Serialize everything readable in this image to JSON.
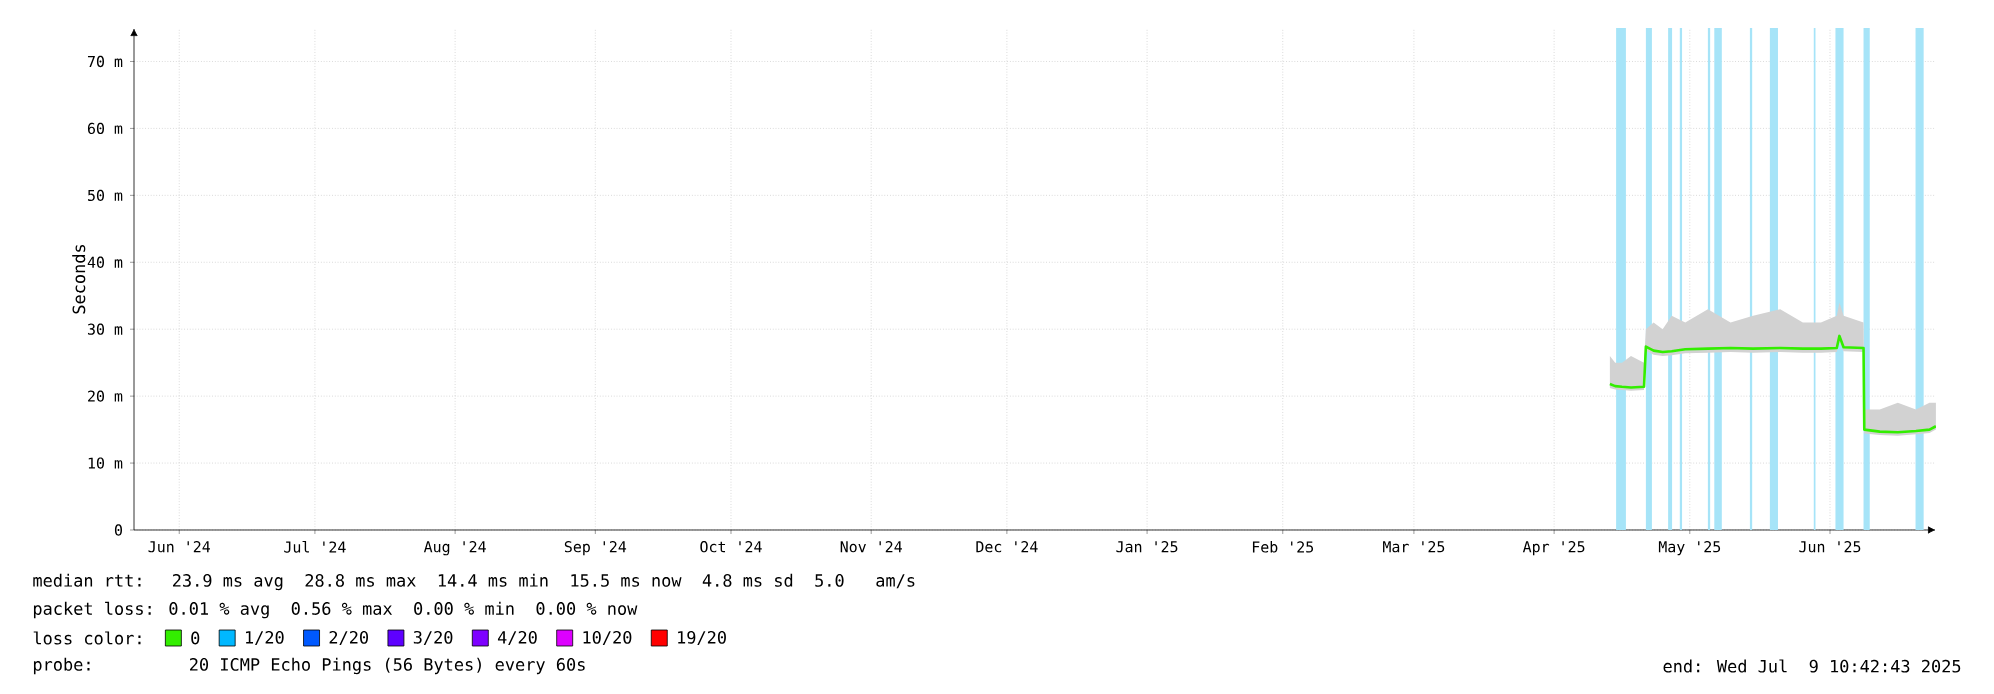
{
  "chart_data": {
    "type": "line",
    "ylabel": "Seconds",
    "legend_title": "loss color:",
    "legend": "bottom",
    "grid": true,
    "xlim": [
      "2024-06-06",
      "2025-07-09T10:42"
    ],
    "xticks": [
      {
        "value": "2024-06-16",
        "label": "Jun '24"
      },
      {
        "value": "2024-07-16",
        "label": "Jul '24"
      },
      {
        "value": "2024-08-16",
        "label": "Aug '24"
      },
      {
        "value": "2024-09-16",
        "label": "Sep '24"
      },
      {
        "value": "2024-10-16",
        "label": "Oct '24"
      },
      {
        "value": "2024-11-16",
        "label": "Nov '24"
      },
      {
        "value": "2024-12-16",
        "label": "Dec '24"
      },
      {
        "value": "2025-01-16",
        "label": "Jan '25"
      },
      {
        "value": "2025-02-15",
        "label": "Feb '25"
      },
      {
        "value": "2025-03-16",
        "label": "Mar '25"
      },
      {
        "value": "2025-04-16",
        "label": "Apr '25"
      },
      {
        "value": "2025-05-16",
        "label": "May '25"
      },
      {
        "value": "2025-06-16",
        "label": "Jun '25"
      }
    ],
    "ylim": [
      0,
      75
    ],
    "yticks": [
      0,
      {
        "value": 10,
        "label": "10 m"
      },
      {
        "value": 20,
        "label": "20 m"
      },
      {
        "value": 30,
        "label": "30 m"
      },
      {
        "value": 40,
        "label": "40 m"
      },
      {
        "value": 50,
        "label": "50 m"
      },
      {
        "value": 60,
        "label": "60 m"
      },
      {
        "value": 70,
        "label": "70 m"
      }
    ],
    "series": [
      {
        "name": "0",
        "color": "#33ee00",
        "x": [
          "2025-04-28T08:00",
          "2025-04-29T12:00",
          "2025-05-01T00:00",
          "2025-05-03T00:00",
          "2025-05-05T21:00",
          "2025-05-06T07:00",
          "2025-05-08T00:00",
          "2025-05-10T00:00",
          "2025-05-12T00:00",
          "2025-05-15T00:00",
          "2025-05-20T00:00",
          "2025-05-25T00:00",
          "2025-05-30T00:00",
          "2025-06-05T00:00",
          "2025-06-10T00:00",
          "2025-06-14T00:00",
          "2025-06-17T12:00",
          "2025-06-18T02:00",
          "2025-06-19T00:00",
          "2025-06-23T10:00",
          "2025-06-23T14:00",
          "2025-06-27T00:00",
          "2025-07-01T00:00",
          "2025-07-05T00:00",
          "2025-07-08T00:00",
          "2025-07-09T10:00"
        ],
        "values": [
          21.8,
          21.5,
          21.4,
          21.3,
          21.4,
          27.4,
          26.8,
          26.6,
          26.7,
          27,
          27.1,
          27.2,
          27.1,
          27.2,
          27.1,
          27.1,
          27.2,
          29,
          27.3,
          27.2,
          15,
          14.7,
          14.6,
          14.8,
          15,
          15.5
        ],
        "lower": [
          21.2,
          21,
          20.9,
          20.8,
          20.9,
          26.8,
          26.2,
          26,
          26.1,
          26.4,
          26.5,
          26.6,
          26.5,
          26.6,
          26.5,
          26.5,
          26.6,
          28,
          26.7,
          26.6,
          14.4,
          14.2,
          14.1,
          14.3,
          14.5,
          15
        ],
        "upper": [
          26,
          25,
          25,
          26,
          25,
          30,
          31,
          30,
          32,
          31,
          33,
          31,
          32,
          33,
          31,
          31,
          32,
          34,
          32,
          31,
          18,
          18,
          19,
          18,
          19,
          19
        ]
      },
      {
        "name": "1/20",
        "color": "#00b8ff"
      },
      {
        "name": "2/20",
        "color": "#0059ff"
      },
      {
        "name": "3/20",
        "color": "#5e00ff"
      },
      {
        "name": "4/20",
        "color": "#7e00ff"
      },
      {
        "name": "10/20",
        "color": "#dd00ff"
      },
      {
        "name": "19/20",
        "color": "#ff0000"
      }
    ],
    "bands": [
      {
        "axis": "x",
        "from": "2025-04-29T17:00",
        "to": "2025-05-01T21:00",
        "color": "#a6e4f8"
      },
      {
        "axis": "x",
        "from": "2025-05-06T07:00",
        "to": "2025-05-07T15:00",
        "color": "#a6e4f8"
      },
      {
        "axis": "x",
        "from": "2025-05-11T05:00",
        "to": "2025-05-12T02:00",
        "color": "#a6e4f8"
      },
      {
        "axis": "x",
        "from": "2025-05-13T19:00",
        "to": "2025-05-14T07:00",
        "color": "#a6e4f8"
      },
      {
        "axis": "x",
        "from": "2025-05-20T00:00",
        "to": "2025-05-20T12:00",
        "color": "#a6e4f8"
      },
      {
        "axis": "x",
        "from": "2025-05-21T10:00",
        "to": "2025-05-23T02:00",
        "color": "#a6e4f8"
      },
      {
        "axis": "x",
        "from": "2025-05-29T07:00",
        "to": "2025-05-29T19:00",
        "color": "#a6e4f8"
      },
      {
        "axis": "x",
        "from": "2025-06-02T17:00",
        "to": "2025-06-04T12:00",
        "color": "#a6e4f8"
      },
      {
        "axis": "x",
        "from": "2025-06-12T10:00",
        "to": "2025-06-12T19:00",
        "color": "#a6e4f8"
      },
      {
        "axis": "x",
        "from": "2025-06-17T05:00",
        "to": "2025-06-19T00:00",
        "color": "#a6e4f8"
      },
      {
        "axis": "x",
        "from": "2025-06-23T10:00",
        "to": "2025-06-24T19:00",
        "color": "#a6e4f8"
      },
      {
        "axis": "x",
        "from": "2025-07-04T22:00",
        "to": "2025-07-06T17:00",
        "color": "#a6e4f8"
      }
    ],
    "annotations": [
      "median rtt:  23.9 ms avg  28.8 ms max  14.4 ms min  15.5 ms now  4.8 ms sd  5.0   am/s",
      "packet loss: 0.01 % avg  0.56 % max  0.00 % min  0.00 % now",
      "probe:       20 ICMP Echo Pings (56 Bytes) every 60s",
      "end: Wed Jul  9 10:42:43 2025"
    ]
  }
}
